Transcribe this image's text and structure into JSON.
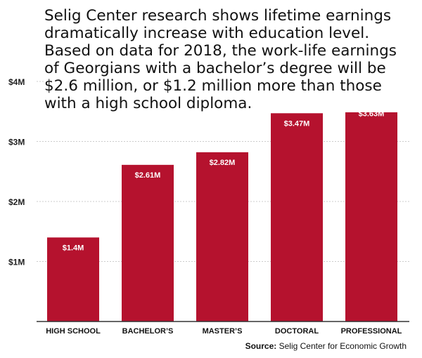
{
  "description_lines": [
    "Selig Center research shows lifetime earnings",
    "dramatically increase with education level.",
    "Based on data for 2018, the work-life earnings",
    "of Georgians with a bachelor’s degree will be",
    "$2.6 million, or $1.2 million more than those",
    "with a high school diploma."
  ],
  "source": {
    "label": "Source:",
    "text": "Selig Center for Economic Growth"
  },
  "colors": {
    "bar": "#b5122e",
    "grid": "#cccccc",
    "axis": "#333333"
  },
  "chart_data": {
    "type": "bar",
    "categories": [
      "HIGH SCHOOL",
      "BACHELOR’S",
      "MASTER’S",
      "DOCTORAL",
      "PROFESSIONAL"
    ],
    "values": [
      1.4,
      2.61,
      2.82,
      3.47,
      3.63
    ],
    "value_labels": [
      "$1.4M",
      "$2.61M",
      "$2.82M",
      "$3.47M",
      "$3.63M"
    ],
    "yticks": [
      1,
      2,
      3,
      4
    ],
    "ytick_labels": [
      "$1M",
      "$2M",
      "$3M",
      "$4M"
    ],
    "ylim": [
      0,
      4
    ],
    "grid": true,
    "title": "",
    "xlabel": "",
    "ylabel": ""
  }
}
